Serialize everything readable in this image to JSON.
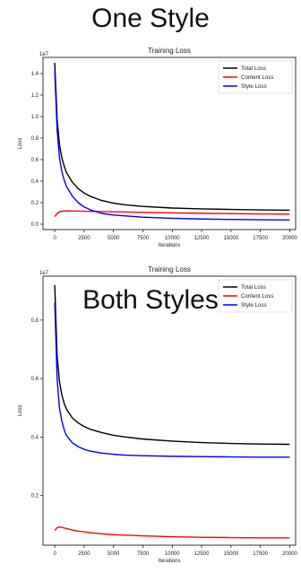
{
  "sections": [
    {
      "title": "One Style"
    },
    {
      "title": "Both Styles"
    }
  ],
  "chart_data": [
    {
      "type": "line",
      "title": "Training Loss",
      "xlabel": "Iterations",
      "ylabel": "Loss",
      "y_multiplier": "1e7",
      "xlim": [
        -1000,
        20500
      ],
      "ylim": [
        -0.05,
        1.55
      ],
      "xticks": [
        0,
        2500,
        5000,
        7500,
        10000,
        12500,
        15000,
        17500,
        20000
      ],
      "yticks": [
        0.0,
        0.2,
        0.4,
        0.6,
        0.8,
        1.0,
        1.2,
        1.4
      ],
      "ytick_labels": [
        "0.0",
        "0.2",
        "0.4",
        "0.6",
        "0.8",
        "1.0",
        "1.2",
        "1.4"
      ],
      "legend_position": "top-right",
      "series": [
        {
          "name": "Total Loss",
          "color": "#000000",
          "x": [
            0,
            200,
            400,
            600,
            800,
            1000,
            1500,
            2000,
            2500,
            3000,
            4000,
            5000,
            6000,
            7500,
            10000,
            12500,
            15000,
            17500,
            20000
          ],
          "y": [
            1.5,
            0.98,
            0.74,
            0.62,
            0.54,
            0.48,
            0.39,
            0.33,
            0.29,
            0.26,
            0.22,
            0.195,
            0.18,
            0.165,
            0.15,
            0.142,
            0.137,
            0.133,
            0.13
          ]
        },
        {
          "name": "Content Loss",
          "color": "#ff0000",
          "x": [
            0,
            200,
            400,
            600,
            800,
            1000,
            1500,
            2000,
            3000,
            4000,
            5000,
            7500,
            10000,
            12500,
            15000,
            17500,
            20000
          ],
          "y": [
            0.07,
            0.1,
            0.115,
            0.12,
            0.122,
            0.123,
            0.122,
            0.121,
            0.119,
            0.117,
            0.115,
            0.11,
            0.105,
            0.101,
            0.098,
            0.095,
            0.093
          ]
        },
        {
          "name": "Style Loss",
          "color": "#0000ff",
          "x": [
            0,
            200,
            400,
            600,
            800,
            1000,
            1500,
            2000,
            2500,
            3000,
            4000,
            5000,
            7500,
            10000,
            12500,
            15000,
            17500,
            20000
          ],
          "y": [
            1.43,
            0.88,
            0.62,
            0.49,
            0.41,
            0.35,
            0.26,
            0.2,
            0.16,
            0.135,
            0.1,
            0.085,
            0.065,
            0.055,
            0.048,
            0.044,
            0.041,
            0.039
          ]
        }
      ]
    },
    {
      "type": "line",
      "title": "Training Loss",
      "xlabel": "Iterations",
      "ylabel": "Loss",
      "y_multiplier": "1e7",
      "xlim": [
        -1000,
        20500
      ],
      "ylim": [
        0.03,
        0.95
      ],
      "xticks": [
        0,
        2500,
        5000,
        7500,
        10000,
        12500,
        15000,
        17500,
        20000
      ],
      "yticks": [
        0.2,
        0.4,
        0.6,
        0.8
      ],
      "ytick_labels": [
        "0.2",
        "0.4",
        "0.6",
        "0.8"
      ],
      "legend_position": "top-right",
      "series": [
        {
          "name": "Total Loss",
          "color": "#000000",
          "x": [
            0,
            200,
            400,
            600,
            800,
            1000,
            1500,
            2000,
            2500,
            3000,
            4000,
            5000,
            6000,
            7500,
            10000,
            12500,
            15000,
            17500,
            20000
          ],
          "y": [
            0.92,
            0.68,
            0.59,
            0.545,
            0.515,
            0.495,
            0.465,
            0.448,
            0.436,
            0.427,
            0.415,
            0.406,
            0.4,
            0.393,
            0.386,
            0.381,
            0.378,
            0.376,
            0.375
          ]
        },
        {
          "name": "Content Loss",
          "color": "#ff0000",
          "x": [
            0,
            200,
            400,
            600,
            800,
            1000,
            1500,
            2000,
            3000,
            4000,
            5000,
            7500,
            10000,
            12500,
            15000,
            17500,
            20000
          ],
          "y": [
            0.08,
            0.09,
            0.092,
            0.091,
            0.089,
            0.087,
            0.082,
            0.078,
            0.073,
            0.069,
            0.066,
            0.062,
            0.059,
            0.057,
            0.056,
            0.055,
            0.055
          ]
        },
        {
          "name": "Style Loss",
          "color": "#0000ff",
          "x": [
            0,
            200,
            400,
            600,
            800,
            1000,
            1500,
            2000,
            2500,
            3000,
            4000,
            5000,
            6000,
            7500,
            10000,
            12500,
            15000,
            17500,
            20000
          ],
          "y": [
            0.86,
            0.6,
            0.5,
            0.455,
            0.425,
            0.405,
            0.38,
            0.367,
            0.358,
            0.352,
            0.345,
            0.341,
            0.338,
            0.336,
            0.334,
            0.333,
            0.332,
            0.331,
            0.331
          ]
        }
      ]
    }
  ]
}
